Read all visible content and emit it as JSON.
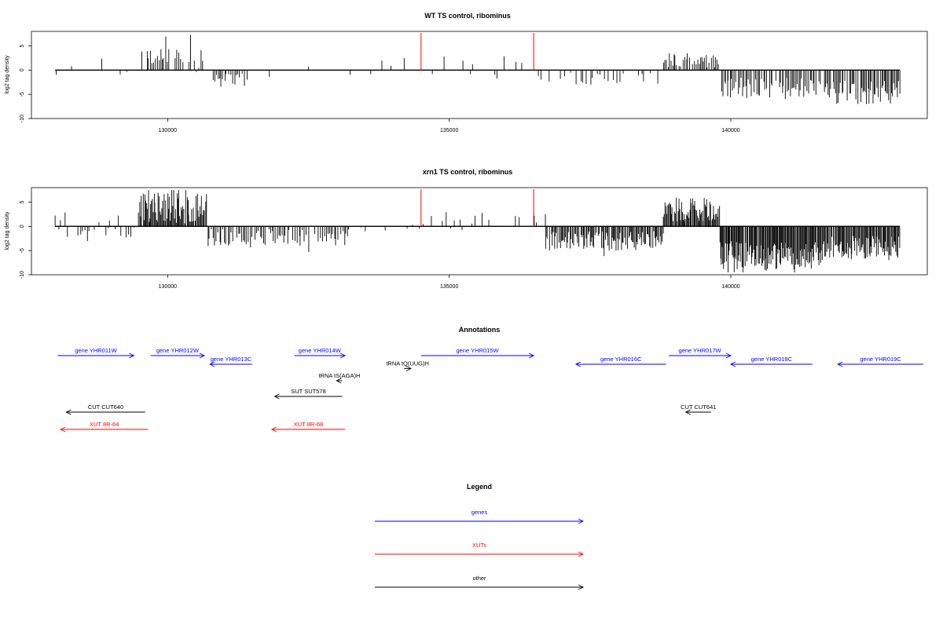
{
  "colors": {
    "gene": "#0000ff",
    "xut": "#ff0000",
    "other": "#000000",
    "marker": "#ff0000",
    "bar": "#000000"
  },
  "chart_data": [
    {
      "type": "bar",
      "title": "WT TS control, ribominus",
      "ylabel": "log2 tag density",
      "xlim": [
        128000,
        143000
      ],
      "ylim": [
        -10,
        8
      ],
      "xticks": [
        "130000",
        "135000",
        "140000"
      ],
      "xtick_values": [
        130000,
        135000,
        140000
      ],
      "yticks": [
        "-10",
        "-5",
        "0",
        "5"
      ],
      "ytick_values": [
        -10,
        -5,
        0,
        5
      ],
      "markers_x": [
        134500,
        136500
      ],
      "segments": [
        {
          "from": 128000,
          "to": 129500,
          "step": 180,
          "min": -1.5,
          "max": 2.5,
          "prob": 0.55
        },
        {
          "from": 129500,
          "to": 130700,
          "step": 30,
          "min": -0.5,
          "max": 5.5,
          "prob": 0.7
        },
        {
          "from": 130700,
          "to": 131400,
          "step": 30,
          "min": -3.5,
          "max": -0.5,
          "prob": 0.75
        },
        {
          "from": 131400,
          "to": 134300,
          "step": 150,
          "min": -2.5,
          "max": 2.5,
          "prob": 0.45
        },
        {
          "from": 134300,
          "to": 136700,
          "step": 110,
          "min": -2,
          "max": 3,
          "prob": 0.55
        },
        {
          "from": 136700,
          "to": 138800,
          "step": 60,
          "min": -3,
          "max": -0.5,
          "prob": 0.55
        },
        {
          "from": 138800,
          "to": 139800,
          "step": 25,
          "min": 0.5,
          "max": 3.5,
          "prob": 0.85
        },
        {
          "from": 139800,
          "to": 141700,
          "step": 25,
          "min": -6,
          "max": -1.5,
          "prob": 0.85
        },
        {
          "from": 141700,
          "to": 143000,
          "step": 22,
          "min": -7,
          "max": -2,
          "prob": 0.92
        }
      ]
    },
    {
      "type": "bar",
      "title": "xrn1 TS control, ribominus",
      "ylabel": "log2 tag density",
      "xlim": [
        128000,
        143000
      ],
      "ylim": [
        -10,
        8
      ],
      "xticks": [
        "130000",
        "135000",
        "140000"
      ],
      "xtick_values": [
        130000,
        135000,
        140000
      ],
      "yticks": [
        "-10",
        "-5",
        "0",
        "5"
      ],
      "ytick_values": [
        -10,
        -5,
        0,
        5
      ],
      "markers_x": [
        134500,
        136500
      ],
      "segments": [
        {
          "from": 128000,
          "to": 129500,
          "step": 40,
          "min": -2.5,
          "max": 3.5,
          "prob": 0.65
        },
        {
          "from": 129500,
          "to": 130700,
          "step": 15,
          "min": 0.5,
          "max": 7,
          "prob": 0.95
        },
        {
          "from": 130700,
          "to": 133200,
          "step": 30,
          "min": -4,
          "max": -0.5,
          "prob": 0.8
        },
        {
          "from": 133200,
          "to": 134300,
          "step": 90,
          "min": -1.5,
          "max": 2,
          "prob": 0.5
        },
        {
          "from": 134300,
          "to": 136700,
          "step": 70,
          "min": -1,
          "max": 3,
          "prob": 0.6
        },
        {
          "from": 136700,
          "to": 138800,
          "step": 18,
          "min": -5,
          "max": -1,
          "prob": 0.92
        },
        {
          "from": 138800,
          "to": 139800,
          "step": 15,
          "min": 1,
          "max": 6,
          "prob": 0.95
        },
        {
          "from": 139800,
          "to": 141600,
          "step": 14,
          "min": -9,
          "max": -3,
          "prob": 0.97
        },
        {
          "from": 141600,
          "to": 143000,
          "step": 16,
          "min": -7,
          "max": -2,
          "prob": 0.95
        }
      ]
    }
  ],
  "annotations": {
    "title": "Annotations",
    "items": [
      {
        "label": "gene YHR011W",
        "kind": "gene",
        "start": 128050,
        "end": 129400,
        "strand": "+",
        "row": 0
      },
      {
        "label": "gene YHR012W",
        "kind": "gene",
        "start": 129700,
        "end": 130650,
        "strand": "+",
        "row": 0
      },
      {
        "label": "gene YHR013C",
        "kind": "gene",
        "start": 130750,
        "end": 131500,
        "strand": "-",
        "row": 1
      },
      {
        "label": "gene YHR014W",
        "kind": "gene",
        "start": 132250,
        "end": 133150,
        "strand": "+",
        "row": 0
      },
      {
        "label": "gene YHR015W",
        "kind": "gene",
        "start": 134500,
        "end": 136500,
        "strand": "+",
        "row": 0
      },
      {
        "label": "gene YHR016C",
        "kind": "gene",
        "start": 137250,
        "end": 138850,
        "strand": "-",
        "row": 1
      },
      {
        "label": "gene YHR017W",
        "kind": "gene",
        "start": 138900,
        "end": 140000,
        "strand": "+",
        "row": 0
      },
      {
        "label": "gene YHR018C",
        "kind": "gene",
        "start": 140000,
        "end": 141450,
        "strand": "-",
        "row": 1
      },
      {
        "label": "gene YHR019C",
        "kind": "gene",
        "start": 141900,
        "end": 143500,
        "strand": "-",
        "row": 1
      },
      {
        "label": "tRNA tS(AGA)H",
        "kind": "other",
        "start": 133000,
        "end": 133100,
        "strand": "-",
        "row": 2
      },
      {
        "label": "tRNA tQ(UUG)H",
        "kind": "other",
        "start": 134200,
        "end": 134320,
        "strand": "+",
        "row": 1.5
      },
      {
        "label": "SUT SUT578",
        "kind": "other",
        "start": 131900,
        "end": 133100,
        "strand": "-",
        "row": 3
      },
      {
        "label": "CUT CUT640",
        "kind": "other",
        "start": 128200,
        "end": 129600,
        "strand": "-",
        "row": 4
      },
      {
        "label": "CUT CUT641",
        "kind": "other",
        "start": 139200,
        "end": 139650,
        "strand": "-",
        "row": 4
      },
      {
        "label": "XUT 8R-64",
        "kind": "xut",
        "start": 128100,
        "end": 129650,
        "strand": "-",
        "row": 5
      },
      {
        "label": "XUT 8R-68",
        "kind": "xut",
        "start": 131850,
        "end": 133150,
        "strand": "-",
        "row": 5
      }
    ]
  },
  "legend": {
    "title": "Legend",
    "items": [
      {
        "label": "genes",
        "kind": "gene"
      },
      {
        "label": "XUTs",
        "kind": "xut"
      },
      {
        "label": "other",
        "kind": "other"
      }
    ]
  }
}
